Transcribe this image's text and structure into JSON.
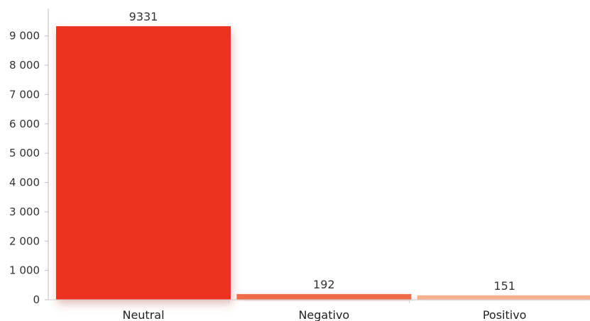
{
  "chart_data": {
    "type": "bar",
    "categories": [
      "Neutral",
      "Negativo",
      "Positivo"
    ],
    "values": [
      9331,
      192,
      151
    ],
    "data_labels": [
      "9331",
      "192",
      "151"
    ],
    "ylim": [
      0,
      10000
    ],
    "yticks": [
      0,
      1000,
      2000,
      3000,
      4000,
      5000,
      6000,
      7000,
      8000,
      9000
    ],
    "ytick_labels": [
      "0",
      "1 000",
      "2 000",
      "3 000",
      "4 000",
      "5 000",
      "6 000",
      "7 000",
      "8 000",
      "9 000"
    ],
    "bar_colors": [
      "#ee3124",
      "#ee6b4a",
      "#f5b08f"
    ],
    "grid": false,
    "legend": "none"
  }
}
